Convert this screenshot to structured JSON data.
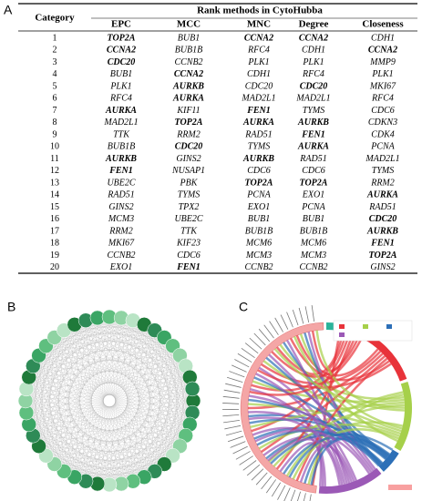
{
  "panel_labels": [
    "A",
    "B",
    "C"
  ],
  "table": {
    "header_title": "Rank methods in CytoHubba",
    "columns": [
      "Category",
      "EPC",
      "MCC",
      "MNC",
      "Degree",
      "Closeness"
    ],
    "rows": [
      {
        "category": "1",
        "cells": [
          {
            "text": "TOP2A",
            "bold": true
          },
          {
            "text": "BUB1",
            "bold": false
          },
          {
            "text": "CCNA2",
            "bold": true
          },
          {
            "text": "CCNA2",
            "bold": true
          },
          {
            "text": "CDH1",
            "bold": false
          }
        ]
      },
      {
        "category": "2",
        "cells": [
          {
            "text": "CCNA2",
            "bold": true
          },
          {
            "text": "BUB1B",
            "bold": false
          },
          {
            "text": "RFC4",
            "bold": false
          },
          {
            "text": "CDH1",
            "bold": false
          },
          {
            "text": "CCNA2",
            "bold": true
          }
        ]
      },
      {
        "category": "3",
        "cells": [
          {
            "text": "CDC20",
            "bold": true
          },
          {
            "text": "CCNB2",
            "bold": false
          },
          {
            "text": "PLK1",
            "bold": false
          },
          {
            "text": "PLK1",
            "bold": false
          },
          {
            "text": "MMP9",
            "bold": false
          }
        ]
      },
      {
        "category": "4",
        "cells": [
          {
            "text": "BUB1",
            "bold": false
          },
          {
            "text": "CCNA2",
            "bold": true
          },
          {
            "text": "CDH1",
            "bold": false
          },
          {
            "text": "RFC4",
            "bold": false
          },
          {
            "text": "PLK1",
            "bold": false
          }
        ]
      },
      {
        "category": "5",
        "cells": [
          {
            "text": "PLK1",
            "bold": false
          },
          {
            "text": "AURKB",
            "bold": true
          },
          {
            "text": "CDC20",
            "bold": false
          },
          {
            "text": "CDC20",
            "bold": true
          },
          {
            "text": "MKI67",
            "bold": false
          }
        ]
      },
      {
        "category": "6",
        "cells": [
          {
            "text": "RFC4",
            "bold": false
          },
          {
            "text": "AURKA",
            "bold": true
          },
          {
            "text": "MAD2L1",
            "bold": false
          },
          {
            "text": "MAD2L1",
            "bold": false
          },
          {
            "text": "RFC4",
            "bold": false
          }
        ]
      },
      {
        "category": "7",
        "cells": [
          {
            "text": "AURKA",
            "bold": true
          },
          {
            "text": "KIF11",
            "bold": false
          },
          {
            "text": "FEN1",
            "bold": true
          },
          {
            "text": "TYMS",
            "bold": false
          },
          {
            "text": "CDC6",
            "bold": false
          }
        ]
      },
      {
        "category": "8",
        "cells": [
          {
            "text": "MAD2L1",
            "bold": false
          },
          {
            "text": "TOP2A",
            "bold": true
          },
          {
            "text": "AURKA",
            "bold": true
          },
          {
            "text": "AURKB",
            "bold": true
          },
          {
            "text": "CDKN3",
            "bold": false
          }
        ]
      },
      {
        "category": "9",
        "cells": [
          {
            "text": "TTK",
            "bold": false
          },
          {
            "text": "RRM2",
            "bold": false
          },
          {
            "text": "RAD51",
            "bold": false
          },
          {
            "text": "FEN1",
            "bold": true
          },
          {
            "text": "CDK4",
            "bold": false
          }
        ]
      },
      {
        "category": "10",
        "cells": [
          {
            "text": "BUB1B",
            "bold": false
          },
          {
            "text": "CDC20",
            "bold": true
          },
          {
            "text": "TYMS",
            "bold": false
          },
          {
            "text": "AURKA",
            "bold": true
          },
          {
            "text": "PCNA",
            "bold": false
          }
        ]
      },
      {
        "category": "11",
        "cells": [
          {
            "text": "AURKB",
            "bold": true
          },
          {
            "text": "GINS2",
            "bold": false
          },
          {
            "text": "AURKB",
            "bold": true
          },
          {
            "text": "RAD51",
            "bold": false
          },
          {
            "text": "MAD2L1",
            "bold": false
          }
        ]
      },
      {
        "category": "12",
        "cells": [
          {
            "text": "FEN1",
            "bold": true
          },
          {
            "text": "NUSAP1",
            "bold": false
          },
          {
            "text": "CDC6",
            "bold": false
          },
          {
            "text": "CDC6",
            "bold": false
          },
          {
            "text": "TYMS",
            "bold": false
          }
        ]
      },
      {
        "category": "13",
        "cells": [
          {
            "text": "UBE2C",
            "bold": false
          },
          {
            "text": "PBK",
            "bold": false
          },
          {
            "text": "TOP2A",
            "bold": true
          },
          {
            "text": "TOP2A",
            "bold": true
          },
          {
            "text": "RRM2",
            "bold": false
          }
        ]
      },
      {
        "category": "14",
        "cells": [
          {
            "text": "RAD51",
            "bold": false
          },
          {
            "text": "TYMS",
            "bold": false
          },
          {
            "text": "PCNA",
            "bold": false
          },
          {
            "text": "EXO1",
            "bold": false
          },
          {
            "text": "AURKA",
            "bold": true
          }
        ]
      },
      {
        "category": "15",
        "cells": [
          {
            "text": "GINS2",
            "bold": false
          },
          {
            "text": "TPX2",
            "bold": false
          },
          {
            "text": "EXO1",
            "bold": false
          },
          {
            "text": "PCNA",
            "bold": false
          },
          {
            "text": "RAD51",
            "bold": false
          }
        ]
      },
      {
        "category": "16",
        "cells": [
          {
            "text": "MCM3",
            "bold": false
          },
          {
            "text": "UBE2C",
            "bold": false
          },
          {
            "text": "BUB1",
            "bold": false
          },
          {
            "text": "BUB1",
            "bold": false
          },
          {
            "text": "CDC20",
            "bold": true
          }
        ]
      },
      {
        "category": "17",
        "cells": [
          {
            "text": "RRM2",
            "bold": false
          },
          {
            "text": "TTK",
            "bold": false
          },
          {
            "text": "BUB1B",
            "bold": false
          },
          {
            "text": "BUB1B",
            "bold": false
          },
          {
            "text": "AURKB",
            "bold": true
          }
        ]
      },
      {
        "category": "18",
        "cells": [
          {
            "text": "MKI67",
            "bold": false
          },
          {
            "text": "KIF23",
            "bold": false
          },
          {
            "text": "MCM6",
            "bold": false
          },
          {
            "text": "MCM6",
            "bold": false
          },
          {
            "text": "FEN1",
            "bold": true
          }
        ]
      },
      {
        "category": "19",
        "cells": [
          {
            "text": "CCNB2",
            "bold": false
          },
          {
            "text": "CDC6",
            "bold": false
          },
          {
            "text": "MCM3",
            "bold": false
          },
          {
            "text": "MCM3",
            "bold": false
          },
          {
            "text": "TOP2A",
            "bold": true
          }
        ]
      },
      {
        "category": "20",
        "cells": [
          {
            "text": "EXO1",
            "bold": false
          },
          {
            "text": "FEN1",
            "bold": true
          },
          {
            "text": "CCNB2",
            "bold": false
          },
          {
            "text": "CCNB2",
            "bold": false
          },
          {
            "text": "GINS2",
            "bold": false
          }
        ]
      }
    ]
  }
}
